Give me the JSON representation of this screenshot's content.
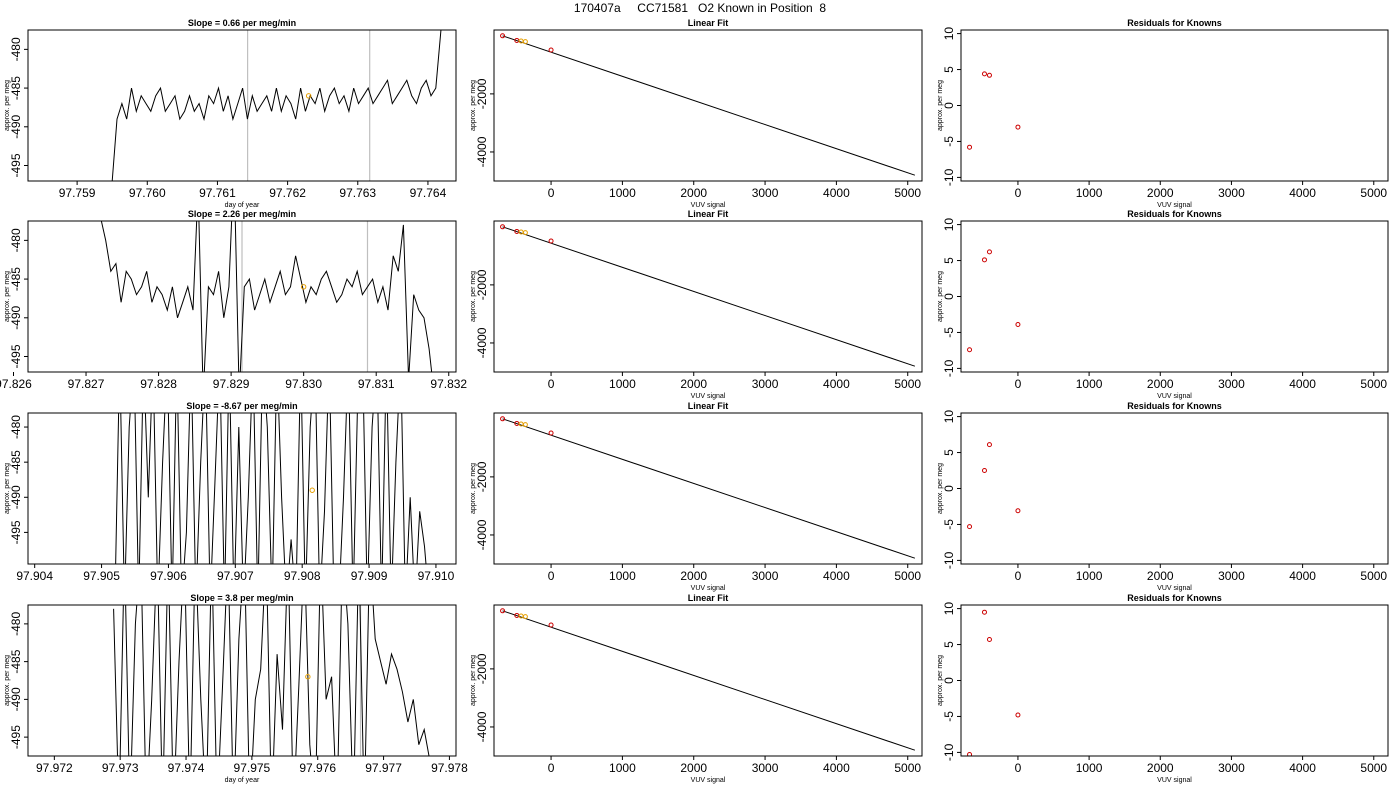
{
  "page": {
    "title": "170407a     CC71581   O2 Known in Position  8"
  },
  "colors": {
    "trace": "#000000",
    "known_marker": "#e69f00",
    "residual_marker": "#cc0000",
    "cursor_line": "#bfbfbf"
  },
  "chart_data": [
    {
      "type": "line",
      "panel": "timeseries",
      "title": "Slope =  0.66  per meg/min",
      "xlabel": "day of year",
      "ylabel": "approx. per meg",
      "xlim": [
        97.7583,
        97.7644
      ],
      "ylim": [
        -497,
        -477.5
      ],
      "xticks": [
        "97.759",
        "97.760",
        "97.761",
        "97.762",
        "97.763",
        "97.764"
      ],
      "yticks": [
        "-495",
        "-490",
        "-485",
        "-480"
      ],
      "vlines": [
        97.76143,
        97.76317
      ],
      "trace_range": [
        97.7595,
        97.76425
      ],
      "trace_y": [
        -497,
        -489,
        -487,
        -489,
        -485,
        -488,
        -486,
        -487,
        -488,
        -486,
        -485,
        -488,
        -487,
        -486,
        -489,
        -488,
        -486,
        -488,
        -487,
        -489,
        -486,
        -487,
        -485,
        -488,
        -486,
        -489,
        -487,
        -485,
        -489,
        -486,
        -488,
        -487,
        -486,
        -488,
        -485,
        -488,
        -486,
        -487,
        -489,
        -485,
        -488,
        -486,
        -487,
        -485,
        -488,
        -486,
        -485,
        -487,
        -486,
        -488,
        -485,
        -487,
        -486,
        -485,
        -487,
        -486,
        -485,
        -484,
        -487,
        -486,
        -485,
        -484,
        -486,
        -487,
        -485,
        -484,
        -486,
        -485,
        -478,
        -471
      ],
      "known_point": {
        "x": 97.7623,
        "y": -486
      }
    },
    {
      "type": "line",
      "panel": "linearfit",
      "title": "Linear Fit",
      "xlabel": "VUV signal",
      "ylabel": "approx. per meg",
      "xlim": [
        -800,
        5200
      ],
      "ylim": [
        -5000,
        200
      ],
      "xticks": [
        "0",
        "1000",
        "2000",
        "3000",
        "4000",
        "5000"
      ],
      "yticks": [
        "-4000",
        "-2000"
      ],
      "fit_line": [
        [
          -680,
          0
        ],
        [
          5100,
          -4800
        ]
      ],
      "points": [
        [
          -680,
          0
        ],
        [
          -480,
          -160
        ],
        [
          -420,
          -180
        ],
        [
          -360,
          -200
        ],
        [
          0,
          -490
        ]
      ]
    },
    {
      "type": "scatter",
      "panel": "residuals",
      "title": "Residuals for Knowns",
      "xlabel": "VUV signal",
      "ylabel": "approx. per meg",
      "xlim": [
        -800,
        5200
      ],
      "ylim": [
        -10.5,
        10.5
      ],
      "xticks": [
        "0",
        "1000",
        "2000",
        "3000",
        "4000",
        "5000"
      ],
      "yticks": [
        "-10",
        "-5",
        "0",
        "5",
        "10"
      ],
      "points": [
        [
          -680,
          -5.8
        ],
        [
          -470,
          4.4
        ],
        [
          -400,
          4.2
        ],
        [
          0,
          -3.0
        ]
      ]
    },
    {
      "type": "line",
      "panel": "timeseries",
      "title": "Slope =  2.26  per meg/min",
      "xlabel": "",
      "ylabel": "approx. per meg",
      "xlim": [
        97.8262,
        97.8321
      ],
      "ylim": [
        -497,
        -477.5
      ],
      "xticks": [
        "97.826",
        "97.827",
        "97.828",
        "97.829",
        "97.830",
        "97.831",
        "97.832"
      ],
      "yticks": [
        "-495",
        "-490",
        "-485",
        "-480"
      ],
      "vlines": [
        97.82915,
        97.83088
      ],
      "trace_range": [
        97.8272,
        97.8318
      ],
      "trace_y": [
        -477,
        -480,
        -484,
        -483,
        -488,
        -484,
        -485,
        -487,
        -486,
        -484,
        -488,
        -486,
        -487,
        -489,
        -486,
        -490,
        -488,
        -486,
        -489,
        -473,
        -500,
        -486,
        -487,
        -484,
        -490,
        -486,
        -470,
        -500,
        -486,
        -485,
        -489,
        -487,
        -485,
        -488,
        -486,
        -484,
        -487,
        -486,
        -482,
        -485,
        -488,
        -486,
        -487,
        -485,
        -484,
        -486,
        -488,
        -487,
        -485,
        -486,
        -484,
        -487,
        -486,
        -485,
        -488,
        -486,
        -489,
        -482,
        -484,
        -478,
        -498,
        -487,
        -489,
        -490,
        -494,
        -500
      ],
      "known_point": {
        "x": 97.83,
        "y": -486
      }
    },
    {
      "type": "line",
      "panel": "linearfit",
      "title": "Linear Fit",
      "xlabel": "VUV signal",
      "ylabel": "approx. per meg",
      "xlim": [
        -800,
        5200
      ],
      "ylim": [
        -5000,
        200
      ],
      "xticks": [
        "0",
        "1000",
        "2000",
        "3000",
        "4000",
        "5000"
      ],
      "yticks": [
        "-4000",
        "-2000"
      ],
      "fit_line": [
        [
          -680,
          0
        ],
        [
          5100,
          -4800
        ]
      ],
      "points": [
        [
          -680,
          0
        ],
        [
          -480,
          -160
        ],
        [
          -420,
          -180
        ],
        [
          -360,
          -200
        ],
        [
          0,
          -490
        ]
      ]
    },
    {
      "type": "scatter",
      "panel": "residuals",
      "title": "Residuals for Knowns",
      "xlabel": "VUV signal",
      "ylabel": "approx. per meg",
      "xlim": [
        -800,
        5200
      ],
      "ylim": [
        -10.5,
        10.5
      ],
      "xticks": [
        "0",
        "1000",
        "2000",
        "3000",
        "4000",
        "5000"
      ],
      "yticks": [
        "-10",
        "-5",
        "0",
        "5",
        "10"
      ],
      "points": [
        [
          -680,
          -7.4
        ],
        [
          -470,
          5.1
        ],
        [
          -400,
          6.2
        ],
        [
          0,
          -3.9
        ]
      ]
    },
    {
      "type": "line",
      "panel": "timeseries",
      "title": "Slope =  -8.67  per meg/min",
      "xlabel": "",
      "ylabel": "approx. per meg",
      "xlim": [
        97.9039,
        97.9103
      ],
      "ylim": [
        -499.5,
        -478
      ],
      "xticks": [
        "97.904",
        "97.905",
        "97.906",
        "97.907",
        "97.908",
        "97.909",
        "97.910"
      ],
      "yticks": [
        "-495",
        "-490",
        "-485",
        "-480"
      ],
      "vlines": [],
      "trace_range": [
        97.9052,
        97.9099
      ],
      "trace_y": [
        -505,
        -470,
        -505,
        -480,
        -470,
        -505,
        -470,
        -490,
        -470,
        -505,
        -485,
        -470,
        -505,
        -470,
        -505,
        -495,
        -470,
        -505,
        -485,
        -470,
        -505,
        -488,
        -470,
        -505,
        -470,
        -505,
        -480,
        -505,
        -490,
        -470,
        -505,
        -470,
        -480,
        -505,
        -470,
        -490,
        -505,
        -496,
        -505,
        -470,
        -505,
        -480,
        -470,
        -505,
        -492,
        -470,
        -505,
        -505,
        -490,
        -470,
        -505,
        -475,
        -470,
        -505,
        -480,
        -470,
        -505,
        -470,
        -505,
        -485,
        -470,
        -505,
        -490,
        -505,
        -492,
        -497,
        -505
      ],
      "known_point": {
        "x": 97.90815,
        "y": -489
      }
    },
    {
      "type": "line",
      "panel": "linearfit",
      "title": "Linear Fit",
      "xlabel": "VUV signal",
      "ylabel": "approx. per meg",
      "xlim": [
        -800,
        5200
      ],
      "ylim": [
        -5000,
        200
      ],
      "xticks": [
        "0",
        "1000",
        "2000",
        "3000",
        "4000",
        "5000"
      ],
      "yticks": [
        "-4000",
        "-2000"
      ],
      "fit_line": [
        [
          -680,
          0
        ],
        [
          5100,
          -4800
        ]
      ],
      "points": [
        [
          -680,
          0
        ],
        [
          -480,
          -160
        ],
        [
          -420,
          -180
        ],
        [
          -360,
          -200
        ],
        [
          0,
          -490
        ]
      ]
    },
    {
      "type": "scatter",
      "panel": "residuals",
      "title": "Residuals for Knowns",
      "xlabel": "VUV signal",
      "ylabel": "approx. per meg",
      "xlim": [
        -800,
        5200
      ],
      "ylim": [
        -10.5,
        10.5
      ],
      "xticks": [
        "0",
        "1000",
        "2000",
        "3000",
        "4000",
        "5000"
      ],
      "yticks": [
        "-10",
        "-5",
        "0",
        "5",
        "10"
      ],
      "points": [
        [
          -680,
          -5.3
        ],
        [
          -470,
          2.5
        ],
        [
          -400,
          6.1
        ],
        [
          0,
          -3.1
        ]
      ]
    },
    {
      "type": "line",
      "panel": "timeseries",
      "title": "Slope =  3.8  per meg/min",
      "xlabel": "day of year",
      "ylabel": "approx. per meg",
      "xlim": [
        97.9716,
        97.9781
      ],
      "ylim": [
        -497.5,
        -477.5
      ],
      "xticks": [
        "97.972",
        "97.973",
        "97.974",
        "97.975",
        "97.976",
        "97.977",
        "97.978"
      ],
      "yticks": [
        "-495",
        "-490",
        "-485",
        "-480"
      ],
      "vlines": [
        97.97665
      ],
      "trace_range": [
        97.9729,
        97.9777
      ],
      "trace_y": [
        -478,
        -505,
        -470,
        -505,
        -480,
        -470,
        -505,
        -490,
        -470,
        -505,
        -470,
        -505,
        -485,
        -470,
        -505,
        -470,
        -490,
        -505,
        -470,
        -505,
        -488,
        -470,
        -505,
        -482,
        -470,
        -505,
        -490,
        -486,
        -470,
        -505,
        -484,
        -494,
        -470,
        -505,
        -488,
        -470,
        -496,
        -505,
        -470,
        -490,
        -487,
        -505,
        -470,
        -480,
        -505,
        -470,
        -505,
        -470,
        -482,
        -485,
        -488,
        -484,
        -486,
        -489,
        -493,
        -490,
        -496,
        -494,
        -498
      ],
      "known_point": {
        "x": 97.97585,
        "y": -487
      }
    },
    {
      "type": "line",
      "panel": "linearfit",
      "title": "Linear Fit",
      "xlabel": "VUV signal",
      "ylabel": "approx. per meg",
      "xlim": [
        -800,
        5200
      ],
      "ylim": [
        -5000,
        200
      ],
      "xticks": [
        "0",
        "1000",
        "2000",
        "3000",
        "4000",
        "5000"
      ],
      "yticks": [
        "-4000",
        "-2000"
      ],
      "fit_line": [
        [
          -680,
          0
        ],
        [
          5100,
          -4800
        ]
      ],
      "points": [
        [
          -680,
          0
        ],
        [
          -480,
          -160
        ],
        [
          -420,
          -180
        ],
        [
          -360,
          -200
        ],
        [
          0,
          -490
        ]
      ]
    },
    {
      "type": "scatter",
      "panel": "residuals",
      "title": "Residuals for Knowns",
      "xlabel": "VUV signal",
      "ylabel": "approx. per meg",
      "xlim": [
        -800,
        5200
      ],
      "ylim": [
        -10.5,
        10.5
      ],
      "xticks": [
        "0",
        "1000",
        "2000",
        "3000",
        "4000",
        "5000"
      ],
      "yticks": [
        "-10",
        "-5",
        "0",
        "5",
        "10"
      ],
      "points": [
        [
          -680,
          -10.3
        ],
        [
          -470,
          9.5
        ],
        [
          -400,
          5.7
        ],
        [
          0,
          -4.8
        ]
      ]
    }
  ]
}
